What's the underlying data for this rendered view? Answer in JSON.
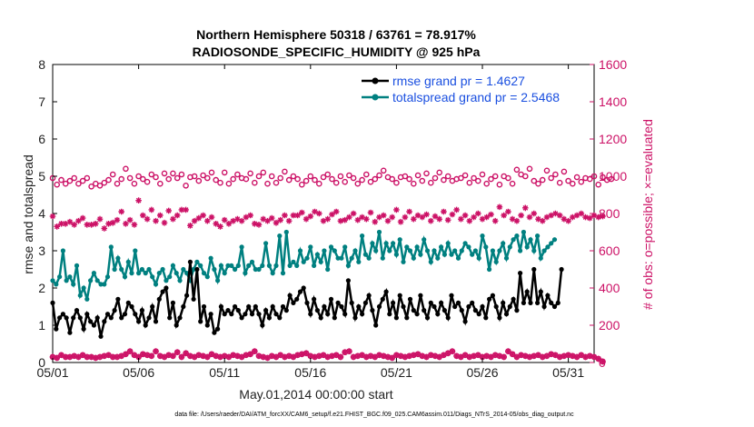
{
  "title_line1": "Northern Hemisphere 50318 / 63761 = 78.917%",
  "title_line2": "RADIOSONDE_SPECIFIC_HUMIDITY @ 925 hPa",
  "footer": "data file: /Users/raeder/DAI/ATM_forcXX/CAM6_setup/f.e21.FHIST_BGC.f09_025.CAM6assim.011/Diags_NTrS_2014-05/obs_diag_output.nc",
  "colors": {
    "rmse": "#000000",
    "spread": "#008080",
    "counts": "#cc1166",
    "legend_text": "#1a4fe0"
  },
  "chart_data": {
    "type": "line",
    "xlabel": "May.01,2014 00:00:00 start",
    "ylabel": "rmse and totalspread",
    "y2label": "# of obs: o=possible; ×=evaluated",
    "xlim": [
      0,
      31.5
    ],
    "ylim": [
      0,
      8
    ],
    "y2lim": [
      0,
      1600
    ],
    "x_ticks": [
      0,
      5,
      10,
      15,
      20,
      25,
      30
    ],
    "x_tick_labels": [
      "05/01",
      "05/06",
      "05/11",
      "05/16",
      "05/21",
      "05/26",
      "05/31"
    ],
    "y_ticks": [
      0,
      1,
      2,
      3,
      4,
      5,
      6,
      7,
      8
    ],
    "y2_ticks": [
      0,
      200,
      400,
      600,
      800,
      1000,
      1200,
      1400,
      1600
    ],
    "legend_position": "top-right",
    "series": [
      {
        "name": "rmse grand pr = 1.4627",
        "axis": "left",
        "values": [
          1.6,
          0.9,
          1.2,
          1.3,
          1.2,
          0.8,
          1.2,
          1.4,
          1.2,
          0.9,
          1.3,
          1.1,
          1.0,
          1.2,
          0.7,
          1.1,
          1.3,
          1.2,
          1.4,
          1.7,
          1.2,
          1.3,
          1.6,
          1.5,
          1.3,
          1.1,
          1.4,
          1.0,
          1.2,
          1.5,
          1.1,
          1.7,
          1.9,
          2.0,
          1.2,
          1.6,
          1.0,
          1.2,
          1.5,
          1.8,
          2.7,
          1.7,
          2.5,
          1.1,
          1.5,
          1.0,
          1.3,
          0.8,
          0.9,
          1.5,
          1.3,
          1.4,
          1.3,
          1.5,
          1.4,
          1.2,
          1.3,
          1.5,
          1.3,
          1.5,
          1.3,
          1.0,
          1.4,
          1.2,
          1.5,
          1.3,
          1.2,
          1.5,
          1.4,
          1.8,
          1.6,
          1.7,
          1.9,
          2.0,
          1.6,
          1.3,
          1.7,
          1.4,
          1.2,
          1.5,
          1.3,
          1.7,
          1.2,
          1.6,
          1.5,
          1.3,
          2.2,
          1.6,
          1.2,
          1.5,
          1.3,
          1.6,
          1.8,
          1.4,
          1.0,
          1.5,
          1.7,
          1.9,
          1.3,
          1.6,
          1.2,
          1.8,
          1.5,
          1.2,
          1.7,
          1.4,
          1.3,
          1.8,
          1.4,
          1.2,
          1.6,
          1.5,
          1.3,
          1.6,
          1.4,
          1.2,
          1.8,
          1.5,
          1.6,
          1.4,
          1.1,
          1.5,
          1.6,
          1.4,
          1.3,
          1.5,
          1.2,
          1.7,
          1.8,
          1.5,
          1.2,
          1.6,
          1.3,
          1.5,
          1.7,
          1.4,
          2.4,
          1.6,
          1.9,
          1.6,
          2.5,
          1.6,
          1.9,
          1.5,
          1.8,
          1.6,
          1.5,
          1.6,
          2.5
        ],
        "x_start": 0.0,
        "x_step": 0.2
      },
      {
        "name": "totalspread grand pr = 2.5468",
        "axis": "left",
        "values": [
          2.2,
          2.1,
          2.3,
          3.0,
          2.2,
          2.3,
          2.1,
          2.6,
          1.8,
          2.0,
          1.7,
          2.2,
          2.4,
          2.2,
          2.1,
          2.1,
          2.3,
          3.1,
          2.5,
          2.8,
          2.5,
          2.3,
          2.7,
          2.4,
          3.0,
          2.4,
          2.5,
          2.4,
          2.5,
          2.3,
          2.1,
          2.4,
          2.5,
          2.2,
          2.3,
          2.6,
          2.4,
          2.2,
          2.5,
          2.4,
          2.2,
          2.5,
          2.7,
          2.6,
          2.4,
          2.3,
          2.8,
          2.5,
          2.2,
          2.6,
          2.4,
          2.6,
          2.6,
          2.5,
          2.6,
          3.1,
          2.4,
          2.6,
          2.7,
          2.5,
          2.5,
          2.6,
          3.2,
          2.6,
          2.4,
          2.6,
          3.4,
          2.4,
          3.5,
          2.6,
          2.7,
          2.6,
          3.0,
          2.7,
          2.8,
          3.1,
          2.6,
          2.9,
          2.7,
          3.0,
          2.5,
          3.1,
          3.0,
          2.8,
          2.8,
          3.1,
          2.6,
          2.8,
          3.0,
          2.7,
          3.4,
          2.9,
          2.8,
          3.2,
          3.0,
          3.5,
          2.8,
          3.2,
          3.0,
          3.2,
          2.9,
          3.3,
          2.7,
          3.1,
          3.0,
          2.8,
          3.1,
          2.9,
          3.3,
          3.0,
          2.7,
          3.0,
          2.8,
          3.1,
          2.9,
          3.2,
          2.9,
          3.0,
          2.8,
          3.0,
          3.2,
          3.1,
          2.9,
          3.0,
          2.8,
          3.4,
          3.1,
          2.5,
          3.0,
          2.7,
          3.0,
          3.2,
          2.8,
          3.1,
          3.3,
          3.4,
          3.0,
          3.5,
          3.1,
          3.3,
          3.0,
          3.4,
          2.8,
          3.0,
          3.1,
          3.2,
          3.3
        ],
        "x_start": 0.0,
        "x_step": 0.2
      },
      {
        "name": "possible",
        "axis": "right",
        "marker": "o",
        "values": [
          990,
          955,
          980,
          960,
          975,
          990,
          960,
          975,
          990,
          945,
          960,
          950,
          965,
          980,
          1010,
          960,
          985,
          1040,
          990,
          960,
          1000,
          985,
          970,
          1010,
          995,
          960,
          1015,
          985,
          1015,
          990,
          1010,
          950,
          995,
          1000,
          975,
          1005,
          990,
          1020,
          980,
          965,
          1020,
          960,
          985,
          1010,
          990,
          985,
          1015,
          965,
          1000,
          1020,
          960,
          1000,
          965,
          990,
          1025,
          980,
          1000,
          985,
          955,
          975,
          1000,
          980,
          960,
          995,
          1010,
          985,
          965,
          1000,
          970,
          1005,
          990,
          960,
          980,
          1010,
          970,
          985,
          1005,
          1030,
          995,
          985,
          965,
          995,
          1000,
          985,
          960,
          1005,
          975,
          1015,
          965,
          990,
          1020,
          980,
          1000,
          975,
          985,
          990,
          1005,
          965,
          990,
          975,
          1010,
          960,
          985,
          1000,
          955,
          1000,
          990,
          960,
          1035,
          1010,
          1000,
          1040,
          975,
          960,
          980,
          1030,
          990,
          1010,
          965,
          1025,
          975,
          960,
          995,
          970,
          990,
          985,
          1000,
          955,
          995,
          980,
          985
        ],
        "x_start": 0.0,
        "x_step": 0.25
      },
      {
        "name": "evaluated",
        "axis": "right",
        "marker": "x",
        "values": [
          785,
          730,
          745,
          745,
          755,
          740,
          760,
          775,
          740,
          740,
          745,
          770,
          720,
          745,
          750,
          765,
          810,
          745,
          765,
          740,
          870,
          790,
          770,
          820,
          760,
          790,
          750,
          815,
          770,
          790,
          820,
          820,
          735,
          760,
          775,
          790,
          760,
          780,
          745,
          730,
          765,
          745,
          760,
          770,
          760,
          780,
          790,
          745,
          740,
          770,
          760,
          775,
          750,
          765,
          790,
          760,
          790,
          790,
          805,
          770,
          785,
          810,
          800,
          760,
          770,
          795,
          810,
          760,
          765,
          780,
          800,
          765,
          780,
          770,
          805,
          755,
          780,
          790,
          760,
          780,
          820,
          755,
          780,
          810,
          770,
          790,
          780,
          795,
          760,
          785,
          770,
          810,
          765,
          795,
          820,
          770,
          790,
          760,
          780,
          800,
          770,
          780,
          795,
          760,
          835,
          790,
          810,
          770,
          760,
          790,
          830,
          780,
          800,
          770,
          760,
          780,
          790,
          800,
          790,
          770,
          760,
          780,
          790,
          800,
          780,
          775,
          790,
          780,
          785
        ],
        "x_start": 0.0,
        "x_step": 0.25
      },
      {
        "name": "low_counts",
        "axis": "right",
        "marker": "o_and_x",
        "values": [
          30,
          25,
          40,
          30,
          30,
          35,
          30,
          40,
          30,
          30,
          25,
          30,
          35,
          40,
          30,
          30,
          35,
          45,
          60,
          40,
          30,
          45,
          40,
          35,
          60,
          35,
          30,
          40,
          35,
          55,
          30,
          50,
          35,
          30,
          40,
          35,
          30,
          45,
          35,
          30,
          35,
          30,
          40,
          35,
          30,
          40,
          45,
          60,
          35,
          30,
          25,
          35,
          30,
          40,
          30,
          35,
          30,
          40,
          45,
          50,
          35,
          30,
          35,
          40,
          30,
          35,
          40,
          30,
          55,
          60,
          30,
          35,
          40,
          30,
          35,
          30,
          40,
          35,
          30,
          25,
          40,
          35,
          30,
          35,
          40,
          45,
          35,
          30,
          40,
          35,
          30,
          40,
          50,
          60,
          35,
          30,
          40,
          30,
          35,
          40,
          30,
          35,
          30,
          40,
          35,
          30,
          60,
          45,
          30,
          40,
          35,
          30,
          35,
          40,
          30,
          35,
          45,
          40,
          30,
          35,
          40,
          35,
          30,
          40,
          30,
          35,
          30,
          20,
          5
        ],
        "x_start": 0.0,
        "x_step": 0.25
      }
    ]
  }
}
